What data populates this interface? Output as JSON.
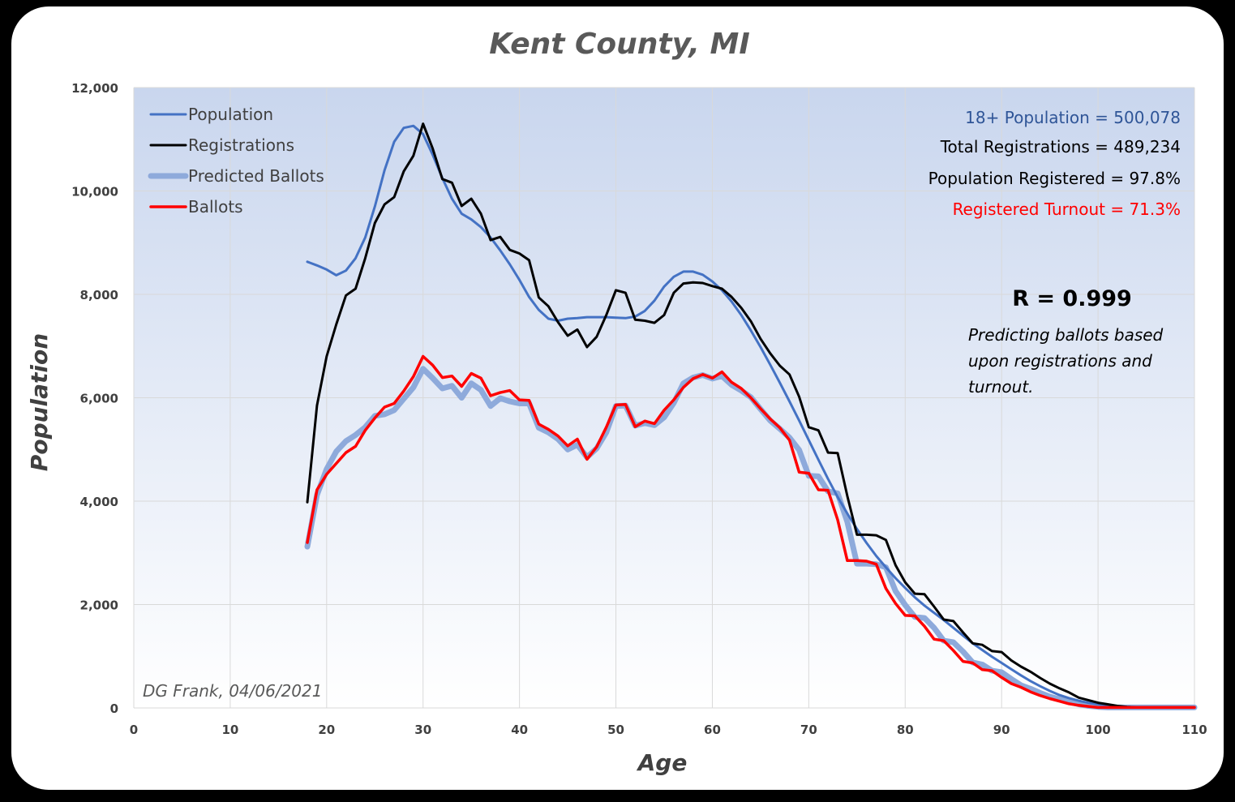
{
  "chart_data": {
    "type": "line",
    "title": "Kent County, MI",
    "xlabel": "Age",
    "ylabel": "Population",
    "xlim": [
      0,
      110
    ],
    "ylim": [
      0,
      12000
    ],
    "xticks": [
      0,
      10,
      20,
      30,
      40,
      50,
      60,
      70,
      80,
      90,
      100,
      110
    ],
    "yticks": [
      0,
      2000,
      4000,
      6000,
      8000,
      10000,
      12000
    ],
    "xtick_labels": [
      "0",
      "10",
      "20",
      "30",
      "40",
      "50",
      "60",
      "70",
      "80",
      "90",
      "100",
      "110"
    ],
    "ytick_labels": [
      "0",
      "2,000",
      "4,000",
      "6,000",
      "8,000",
      "10,000",
      "12,000"
    ],
    "grid": true,
    "legend_position": "top-left",
    "x_start": 18,
    "series": [
      {
        "name": "Population",
        "color": "#4472c4",
        "values": [
          8630,
          8560,
          8480,
          8370,
          8460,
          8700,
          9100,
          9700,
          10400,
          10950,
          11220,
          11260,
          11100,
          10700,
          10250,
          9850,
          9560,
          9450,
          9300,
          9100,
          8850,
          8580,
          8280,
          7950,
          7700,
          7530,
          7490,
          7530,
          7540,
          7560,
          7560,
          7560,
          7550,
          7540,
          7570,
          7680,
          7880,
          8150,
          8340,
          8440,
          8440,
          8380,
          8250,
          8080,
          7860,
          7600,
          7300,
          6980,
          6640,
          6290,
          5930,
          5560,
          5180,
          4800,
          4430,
          4080,
          3760,
          3460,
          3190,
          2940,
          2720,
          2510,
          2320,
          2140,
          1980,
          1840,
          1700,
          1550,
          1400,
          1250,
          1120,
          990,
          870,
          750,
          630,
          520,
          420,
          330,
          250,
          190,
          140,
          100,
          70,
          50,
          30,
          20,
          10,
          10,
          10,
          10,
          10,
          10,
          10
        ]
      },
      {
        "name": "Registrations",
        "color": "#000000",
        "values": [
          3980,
          5850,
          6800,
          7420,
          7980,
          8110,
          8700,
          9380,
          9740,
          9880,
          10380,
          10680,
          11300,
          10820,
          10230,
          10160,
          9710,
          9850,
          9560,
          9050,
          9110,
          8860,
          8790,
          8660,
          7940,
          7770,
          7460,
          7200,
          7320,
          6980,
          7180,
          7600,
          8080,
          8030,
          7510,
          7490,
          7450,
          7600,
          8030,
          8210,
          8230,
          8220,
          8160,
          8110,
          7950,
          7740,
          7480,
          7140,
          6860,
          6620,
          6450,
          6020,
          5430,
          5370,
          4940,
          4930,
          4100,
          3350,
          3350,
          3340,
          3250,
          2760,
          2430,
          2210,
          2200,
          1960,
          1710,
          1680,
          1460,
          1250,
          1220,
          1100,
          1080,
          920,
          800,
          700,
          580,
          470,
          380,
          300,
          200,
          150,
          100,
          70,
          40,
          20,
          10,
          10,
          10,
          10,
          10,
          10,
          10
        ]
      },
      {
        "name": "Predicted Ballots",
        "color": "#8eaadb",
        "values": [
          3120,
          4120,
          4620,
          4960,
          5160,
          5280,
          5430,
          5650,
          5680,
          5760,
          5980,
          6200,
          6560,
          6380,
          6180,
          6230,
          6000,
          6280,
          6150,
          5840,
          5990,
          5930,
          5890,
          5890,
          5420,
          5330,
          5200,
          5000,
          5090,
          4850,
          5020,
          5330,
          5840,
          5850,
          5460,
          5510,
          5470,
          5620,
          5900,
          6280,
          6390,
          6440,
          6370,
          6420,
          6250,
          6140,
          6010,
          5780,
          5560,
          5400,
          5230,
          4990,
          4490,
          4480,
          4190,
          4150,
          3600,
          2790,
          2790,
          2780,
          2720,
          2260,
          1990,
          1760,
          1740,
          1550,
          1300,
          1270,
          1090,
          880,
          840,
          720,
          690,
          560,
          440,
          370,
          290,
          220,
          170,
          120,
          70,
          40,
          20,
          10,
          10,
          10,
          10,
          10,
          10,
          10,
          10,
          10,
          10
        ]
      },
      {
        "name": "Ballots",
        "color": "#ff0000",
        "values": [
          3200,
          4220,
          4520,
          4730,
          4940,
          5060,
          5370,
          5610,
          5820,
          5890,
          6130,
          6410,
          6800,
          6630,
          6390,
          6420,
          6220,
          6470,
          6380,
          6040,
          6100,
          6140,
          5960,
          5950,
          5490,
          5390,
          5260,
          5070,
          5200,
          4810,
          5050,
          5430,
          5860,
          5870,
          5440,
          5550,
          5500,
          5760,
          5960,
          6200,
          6370,
          6450,
          6380,
          6500,
          6300,
          6180,
          6000,
          5790,
          5590,
          5420,
          5180,
          4560,
          4540,
          4220,
          4210,
          3640,
          2850,
          2850,
          2840,
          2780,
          2310,
          2020,
          1790,
          1780,
          1580,
          1330,
          1300,
          1110,
          900,
          870,
          740,
          720,
          590,
          470,
          400,
          310,
          240,
          180,
          130,
          80,
          50,
          30,
          10,
          10,
          10,
          10,
          10,
          10,
          10,
          10,
          10,
          10,
          10
        ]
      }
    ],
    "annotations": {
      "population_total": "18+ Population = 500,078",
      "registrations_total": "Total Registrations = 489,234",
      "population_registered": "Population Registered = 97.8%",
      "registered_turnout": "Registered Turnout = 71.3%",
      "r_value": "R = 0.999",
      "note_line1": "Predicting ballots based",
      "note_line2": "upon registrations and",
      "note_line3": "turnout.",
      "credit": "DG Frank, 04/06/2021"
    },
    "colors": {
      "plot_bg_top": "#c9d6ee",
      "plot_bg_bottom": "#ffffff",
      "grid": "#d9d9d9",
      "annotation_blue": "#2f5597",
      "annotation_red": "#ff0000"
    }
  }
}
